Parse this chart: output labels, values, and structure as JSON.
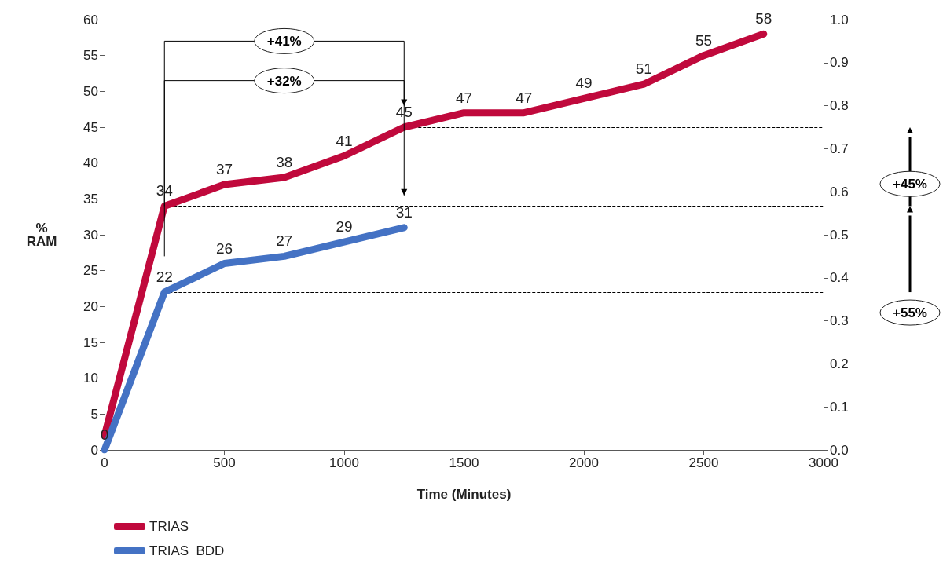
{
  "chart_data": {
    "type": "line",
    "xlabel": "Time (Minutes)",
    "ylabel": "% RAM",
    "x": [
      0,
      250,
      500,
      750,
      1000,
      1250,
      1500,
      1750,
      2000,
      2250,
      2500,
      2750
    ],
    "series": [
      {
        "name": "TRIAS",
        "color": "#c0093c",
        "values": [
          2,
          34,
          37,
          38,
          41,
          45,
          47,
          47,
          49,
          51,
          55,
          58
        ],
        "value_labels": [
          null,
          "34",
          "37",
          "38",
          "41",
          "45",
          "47",
          "47",
          "49",
          "51",
          "55",
          "58"
        ]
      },
      {
        "name": "TRIAS  BDD",
        "color": "#4472c4",
        "x": [
          0,
          250,
          500,
          750,
          1000,
          1250
        ],
        "values": [
          0,
          22,
          26,
          27,
          29,
          31
        ],
        "value_labels": [
          "0",
          "22",
          "26",
          "27",
          "29",
          "31"
        ]
      }
    ],
    "xlim": [
      0,
      3000
    ],
    "xticks": [
      0,
      500,
      1000,
      1500,
      2000,
      2500,
      3000
    ],
    "ylim": [
      0,
      60
    ],
    "yticks": [
      0,
      5,
      10,
      15,
      20,
      25,
      30,
      35,
      40,
      45,
      50,
      55,
      60
    ],
    "y2lim": [
      0,
      1
    ],
    "y2ticks": [
      {
        "value": 0,
        "label": "0.0"
      },
      0.1,
      0.2,
      0.3,
      0.4,
      0.5,
      0.6,
      0.7,
      0.8,
      0.9,
      {
        "value": 1,
        "label": "1.0"
      }
    ],
    "ref_lines": [
      {
        "axis": "y",
        "value": 45,
        "label": null,
        "line_style": "dashed",
        "color": "#000000"
      },
      {
        "axis": "y",
        "value": 34,
        "label": null,
        "line_style": "dashed",
        "color": "#000000"
      },
      {
        "axis": "y",
        "value": 31,
        "label": null,
        "line_style": "dashed",
        "color": "#000000"
      },
      {
        "axis": "y",
        "value": 22,
        "label": null,
        "line_style": "dashed",
        "color": "#000000"
      }
    ],
    "annotations": [
      "+41%",
      "+32%",
      "+45%",
      "+55%"
    ],
    "grid": false,
    "legend": "bottom left",
    "marker": "none",
    "line_style": "solid"
  }
}
